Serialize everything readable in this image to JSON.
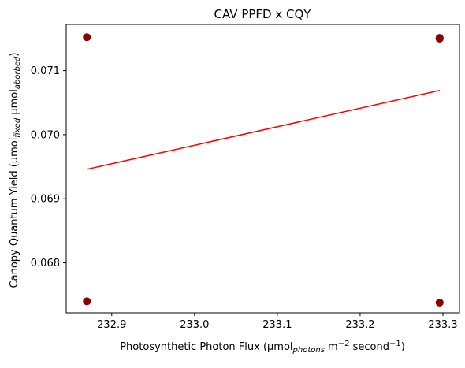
{
  "chart_data": {
    "type": "scatter",
    "title": "CAV PPFD x CQY",
    "xlabel": {
      "base": "Photosynthetic Photon Flux (µmol",
      "sub": "photons",
      "mid": " m",
      "sup1": "−2",
      "mid2": " second",
      "sup2": "−1",
      "end": ")"
    },
    "ylabel": {
      "base": "Canopy Quantum Yield (µmol",
      "sub1": "fixed",
      "mid": " µmol",
      "sub2": "aborbed",
      "end": ")"
    },
    "xlim": [
      232.845,
      233.32
    ],
    "ylim": [
      0.06722,
      0.07172
    ],
    "x_ticks": [
      {
        "value": 232.9,
        "label": "232.9"
      },
      {
        "value": 233.0,
        "label": "233.0"
      },
      {
        "value": 233.1,
        "label": "233.1"
      },
      {
        "value": 233.2,
        "label": "233.2"
      },
      {
        "value": 233.3,
        "label": "233.3"
      }
    ],
    "y_ticks": [
      {
        "value": 0.068,
        "label": "0.068"
      },
      {
        "value": 0.069,
        "label": "0.069"
      },
      {
        "value": 0.07,
        "label": "0.070"
      },
      {
        "value": 0.071,
        "label": "0.071"
      }
    ],
    "points": [
      {
        "x": 232.87,
        "y": 0.07152
      },
      {
        "x": 232.87,
        "y": 0.0674
      },
      {
        "x": 233.296,
        "y": 0.07151
      },
      {
        "x": 233.296,
        "y": 0.0715
      },
      {
        "x": 233.296,
        "y": 0.0715
      },
      {
        "x": 233.296,
        "y": 0.06738
      }
    ],
    "fit_line": {
      "x": [
        232.87,
        233.296
      ],
      "y": [
        0.06946,
        0.07069
      ]
    },
    "point_color": "#8b0000",
    "line_color": "#ff0000",
    "grid": false
  }
}
